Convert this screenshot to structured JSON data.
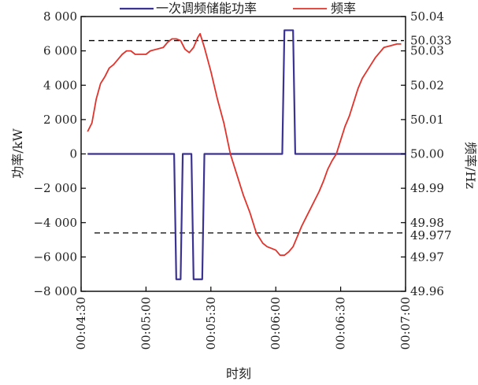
{
  "chart_data": {
    "type": "line",
    "xlabel": "时刻",
    "ylabel_left": "功率/kW",
    "ylabel_right": "频率/Hz",
    "x_range": [
      "00:04:30",
      "00:07:00"
    ],
    "xlim_seconds": [
      270,
      420
    ],
    "y_left_lim": [
      -8000,
      8000
    ],
    "y_right_lim": [
      49.96,
      50.04
    ],
    "x_tick_labels": [
      "00:04:30",
      "00:05:00",
      "00:05:30",
      "00:06:00",
      "00:06:30",
      "00:07:00"
    ],
    "y_left_tick_labels": [
      "8 000",
      "6 000",
      "4 000",
      "2 000",
      "0",
      "−2 000",
      "−4 000",
      "−6 000",
      "−8 000"
    ],
    "y_right_tick_labels": [
      "50.04",
      "50.03",
      "50.02",
      "50.01",
      "50.00",
      "49.99",
      "49.98",
      "49.97",
      "49.96"
    ],
    "y_right_extra_labels": [
      "50.033",
      "49.977"
    ],
    "reference_lines": {
      "upper": 50.033,
      "lower": 49.977,
      "style": "dashed",
      "color": "#000000"
    },
    "series": [
      {
        "name": "一次调频储能功率",
        "axis": "left",
        "color": "#3b3392",
        "points": [
          [
            "00:04:33",
            0
          ],
          [
            "00:05:13",
            0
          ],
          [
            "00:05:14",
            -7300
          ],
          [
            "00:05:16",
            -7300
          ],
          [
            "00:05:17",
            0
          ],
          [
            "00:05:21",
            0
          ],
          [
            "00:05:22",
            -7300
          ],
          [
            "00:05:26",
            -7300
          ],
          [
            "00:05:27",
            0
          ],
          [
            "00:06:03",
            0
          ],
          [
            "00:06:04",
            7200
          ],
          [
            "00:06:08",
            7200
          ],
          [
            "00:06:09",
            0
          ],
          [
            "00:07:00",
            0
          ]
        ]
      },
      {
        "name": "频率",
        "axis": "right",
        "color": "#e1332b",
        "points": [
          [
            "00:04:33",
            50.0065
          ],
          [
            "00:04:35",
            50.009
          ],
          [
            "00:04:37",
            50.016
          ],
          [
            "00:04:39",
            50.0205
          ],
          [
            "00:04:41",
            50.0225
          ],
          [
            "00:04:43",
            50.025
          ],
          [
            "00:04:45",
            50.026
          ],
          [
            "00:04:47",
            50.0275
          ],
          [
            "00:04:49",
            50.029
          ],
          [
            "00:04:51",
            50.03
          ],
          [
            "00:04:53",
            50.03
          ],
          [
            "00:04:55",
            50.029
          ],
          [
            "00:04:57",
            50.029
          ],
          [
            "00:05:00",
            50.029
          ],
          [
            "00:05:02",
            50.03
          ],
          [
            "00:05:05",
            50.0305
          ],
          [
            "00:05:08",
            50.031
          ],
          [
            "00:05:10",
            50.0325
          ],
          [
            "00:05:12",
            50.0335
          ],
          [
            "00:05:14",
            50.0335
          ],
          [
            "00:05:16",
            50.033
          ],
          [
            "00:05:18",
            50.0305
          ],
          [
            "00:05:20",
            50.0295
          ],
          [
            "00:05:22",
            50.031
          ],
          [
            "00:05:24",
            50.034
          ],
          [
            "00:05:25",
            50.035
          ],
          [
            "00:05:27",
            50.031
          ],
          [
            "00:05:30",
            50.024
          ],
          [
            "00:05:33",
            50.016
          ],
          [
            "00:05:36",
            50.009
          ],
          [
            "00:05:39",
            50.0
          ],
          [
            "00:05:42",
            49.994
          ],
          [
            "00:05:45",
            49.988
          ],
          [
            "00:05:48",
            49.983
          ],
          [
            "00:05:51",
            49.977
          ],
          [
            "00:05:54",
            49.974
          ],
          [
            "00:05:56",
            49.973
          ],
          [
            "00:05:58",
            49.9725
          ],
          [
            "00:06:00",
            49.972
          ],
          [
            "00:06:02",
            49.9705
          ],
          [
            "00:06:04",
            49.9705
          ],
          [
            "00:06:06",
            49.9715
          ],
          [
            "00:06:08",
            49.973
          ],
          [
            "00:06:10",
            49.976
          ],
          [
            "00:06:12",
            49.979
          ],
          [
            "00:06:14",
            49.9815
          ],
          [
            "00:06:16",
            49.984
          ],
          [
            "00:06:18",
            49.9865
          ],
          [
            "00:06:20",
            49.989
          ],
          [
            "00:06:22",
            49.992
          ],
          [
            "00:06:24",
            49.9955
          ],
          [
            "00:06:26",
            49.998
          ],
          [
            "00:06:28",
            50.0
          ],
          [
            "00:06:30",
            50.004
          ],
          [
            "00:06:32",
            50.008
          ],
          [
            "00:06:34",
            50.011
          ],
          [
            "00:06:36",
            50.015
          ],
          [
            "00:06:38",
            50.019
          ],
          [
            "00:06:40",
            50.022
          ],
          [
            "00:06:42",
            50.024
          ],
          [
            "00:06:44",
            50.026
          ],
          [
            "00:06:46",
            50.028
          ],
          [
            "00:06:48",
            50.0295
          ],
          [
            "00:06:50",
            50.031
          ],
          [
            "00:06:53",
            50.0315
          ],
          [
            "00:06:56",
            50.032
          ],
          [
            "00:06:58",
            50.032
          ]
        ]
      }
    ],
    "legend": {
      "placement": "top",
      "entries": [
        "一次调频储能功率",
        "频率"
      ]
    },
    "grid": false
  }
}
